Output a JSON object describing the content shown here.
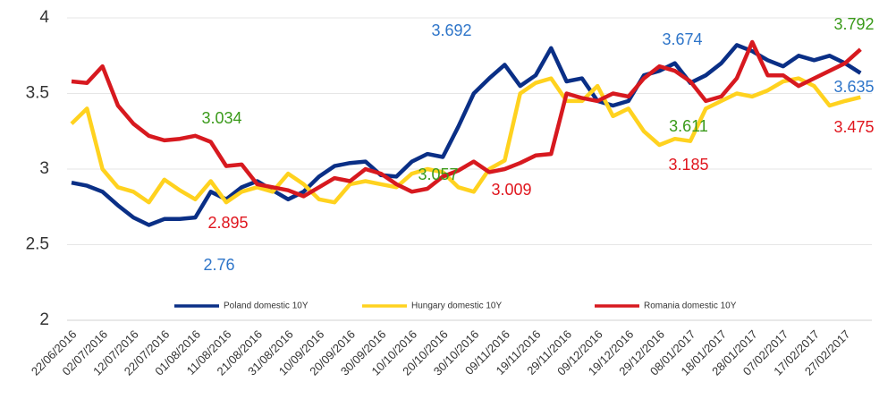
{
  "chart_data": {
    "type": "line",
    "categories": [
      "22/06/2016",
      null,
      "02/07/2016",
      null,
      "12/07/2016",
      null,
      "22/07/2016",
      null,
      "01/08/2016",
      null,
      "11/08/2016",
      null,
      "21/08/2016",
      null,
      "31/08/2016",
      null,
      "10/09/2016",
      null,
      "20/09/2016",
      null,
      "30/09/2016",
      null,
      "10/10/2016",
      null,
      "20/10/2016",
      null,
      "30/10/2016",
      null,
      "09/11/2016",
      null,
      "19/11/2016",
      null,
      "29/11/2016",
      null,
      "09/12/2016",
      null,
      "19/12/2016",
      null,
      "29/12/2016",
      null,
      "08/01/2017",
      null,
      "18/01/2017",
      null,
      "28/01/2017",
      null,
      "07/02/2017",
      null,
      "17/02/2017",
      null,
      "27/02/2017",
      null
    ],
    "series": [
      {
        "name": "Poland domestic 10Y",
        "color": "#0a2f86",
        "values": [
          2.91,
          2.89,
          2.85,
          2.76,
          2.68,
          2.63,
          2.67,
          2.67,
          2.68,
          2.85,
          2.8,
          2.88,
          2.92,
          2.86,
          2.8,
          2.85,
          2.95,
          3.02,
          3.04,
          3.05,
          2.96,
          2.95,
          3.05,
          3.1,
          3.08,
          3.28,
          3.5,
          3.6,
          3.69,
          3.55,
          3.62,
          3.8,
          3.58,
          3.6,
          3.45,
          3.42,
          3.45,
          3.62,
          3.65,
          3.7,
          3.57,
          3.62,
          3.7,
          3.82,
          3.78,
          3.72,
          3.68,
          3.75,
          3.72,
          3.75,
          3.7,
          3.635
        ]
      },
      {
        "name": "Hungary domestic 10Y",
        "color": "#ffd21f",
        "values": [
          3.3,
          3.4,
          3.0,
          2.88,
          2.85,
          2.78,
          2.93,
          2.86,
          2.8,
          2.92,
          2.78,
          2.85,
          2.88,
          2.85,
          2.97,
          2.9,
          2.8,
          2.78,
          2.9,
          2.92,
          2.9,
          2.88,
          2.97,
          3.0,
          2.98,
          2.88,
          2.85,
          3.0,
          3.057,
          3.5,
          3.57,
          3.6,
          3.45,
          3.45,
          3.55,
          3.35,
          3.4,
          3.25,
          3.16,
          3.2,
          3.185,
          3.4,
          3.45,
          3.5,
          3.48,
          3.52,
          3.58,
          3.6,
          3.55,
          3.42,
          3.45,
          3.475
        ]
      },
      {
        "name": "Romania domestic 10Y",
        "color": "#d7191f",
        "values": [
          3.58,
          3.57,
          3.68,
          3.42,
          3.3,
          3.22,
          3.19,
          3.2,
          3.22,
          3.18,
          3.02,
          3.03,
          2.9,
          2.88,
          2.86,
          2.82,
          2.88,
          2.94,
          2.92,
          3.0,
          2.97,
          2.9,
          2.85,
          2.87,
          2.95,
          2.99,
          3.05,
          2.98,
          3.0,
          3.04,
          3.09,
          3.1,
          3.5,
          3.47,
          3.45,
          3.5,
          3.48,
          3.6,
          3.68,
          3.65,
          3.58,
          3.45,
          3.48,
          3.6,
          3.84,
          3.62,
          3.62,
          3.55,
          3.6,
          3.65,
          3.7,
          3.792
        ]
      }
    ],
    "ylim": [
      2,
      4
    ],
    "yticks": [
      2,
      2.5,
      3,
      3.5,
      4
    ],
    "grid": true,
    "legend": "bottom",
    "annotations": [
      {
        "text": "3.692",
        "color": "#2e75c9"
      },
      {
        "text": "3.674",
        "color": "#2e75c9"
      },
      {
        "text": "3.792",
        "color": "#3a9a1a"
      },
      {
        "text": "3.635",
        "color": "#2e75c9"
      },
      {
        "text": "3.034",
        "color": "#3a9a1a"
      },
      {
        "text": "3.611",
        "color": "#3a9a1a"
      },
      {
        "text": "3.475",
        "color": "#e0161e"
      },
      {
        "text": "3.057",
        "color": "#3a9a1a"
      },
      {
        "text": "3.009",
        "color": "#e0161e"
      },
      {
        "text": "3.185",
        "color": "#e0161e"
      },
      {
        "text": "2.895",
        "color": "#e0161e"
      },
      {
        "text": "2.76",
        "color": "#2e75c9"
      }
    ]
  }
}
